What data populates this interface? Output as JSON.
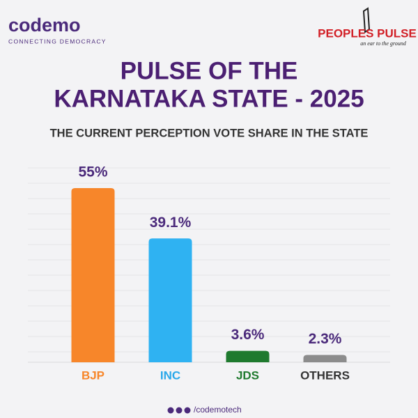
{
  "brand": {
    "name": "codemo",
    "tagline": "CONNECTING DEMOCRACY"
  },
  "partner": {
    "name": "PEOPLES PULSE",
    "tagline": "an ear to the ground"
  },
  "footer": {
    "handle": "/codemotech"
  },
  "chart_data": {
    "type": "bar",
    "title": [
      "PULSE OF THE",
      "KARNATAKA STATE - 2025"
    ],
    "subtitle": "THE CURRENT PERCEPTION VOTE SHARE IN THE STATE",
    "categories": [
      "BJP",
      "INC",
      "JDS",
      "OTHERS"
    ],
    "values": [
      55,
      39.1,
      3.6,
      2.3
    ],
    "value_labels": [
      "55%",
      "39.1%",
      "3.6%",
      "2.3%"
    ],
    "colors": [
      "#f7862a",
      "#2fb2f2",
      "#1f7a2e",
      "#8c8c8c"
    ],
    "label_colors": [
      "#f7862a",
      "#2aa8ea",
      "#1f7a2e",
      "#333333"
    ]
  }
}
